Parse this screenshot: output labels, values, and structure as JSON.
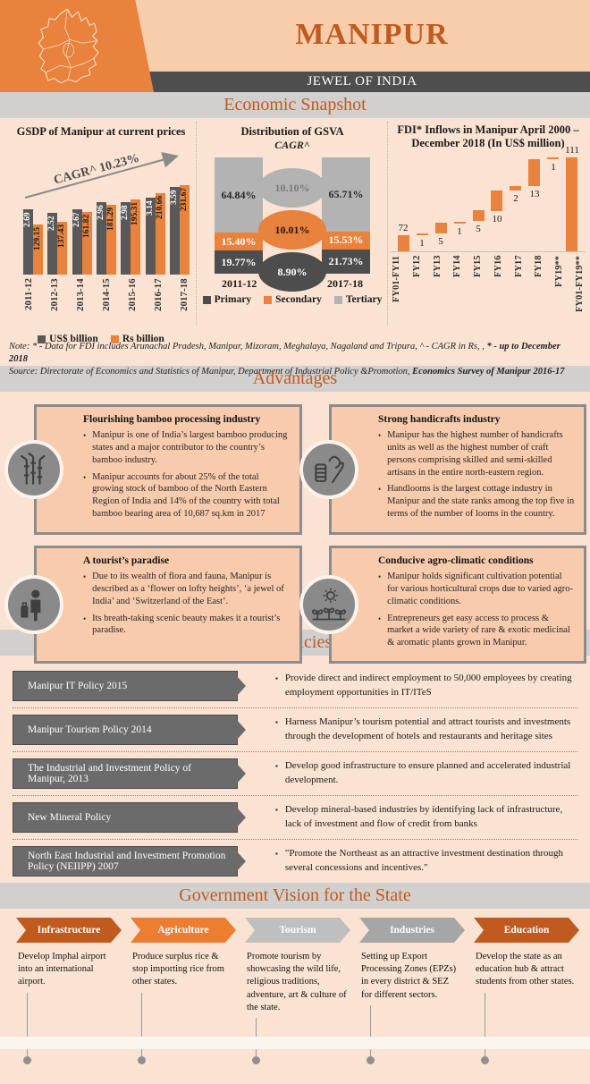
{
  "header": {
    "title": "MANIPUR",
    "tagline": "JEWEL OF INDIA"
  },
  "sections": {
    "economic": "Economic Snapshot",
    "advantages": "Advantages",
    "policies": "Key Government Policies and Objectives",
    "vision": "Government Vision for the State"
  },
  "colors": {
    "orange": "#E8823C",
    "dark_orange": "#C05A1E",
    "mid_orange": "#ED7D31",
    "dark_gray": "#595959",
    "light_gray": "#BFBFBF",
    "mid_gray": "#A6A6A6",
    "peach_bg": "#FAE3D2",
    "card_bg": "#F8CBAD"
  },
  "charts": {
    "gsdp": {
      "title": "GSDP of Manipur at current prices",
      "cagr_label": "CAGR^ 10.23%",
      "years": [
        "2011-12",
        "2012-13",
        "2013-14",
        "2014-15",
        "2015-16",
        "2016-17",
        "2017-18"
      ],
      "usd": [
        2.69,
        2.52,
        2.67,
        2.96,
        2.98,
        3.14,
        3.59
      ],
      "rs": [
        129.15,
        137.43,
        161.82,
        181.29,
        195.31,
        210.66,
        231.67
      ],
      "legend": [
        "US$ billion",
        "Rs billion"
      ]
    },
    "gsva": {
      "title": "Distribution of GSVA",
      "subtitle": "CAGR^",
      "years": [
        "2011-12",
        "2017-18"
      ],
      "primary": [
        19.77,
        21.73
      ],
      "secondary": [
        15.4,
        15.53
      ],
      "tertiary": [
        64.84,
        65.71
      ],
      "cagr_ovals": [
        {
          "label": "10.10%",
          "sector": "tertiary"
        },
        {
          "label": "10.01%",
          "sector": "secondary"
        },
        {
          "label": "8.90%",
          "sector": "primary"
        }
      ],
      "legend": [
        "Primary",
        "Secondary",
        "Tertiary"
      ]
    },
    "fdi": {
      "title": "FDI* Inflows in Manipur April 2000 – December 2018 (In US$ million)",
      "categories": [
        "FY01-FY11",
        "FY12",
        "FY13",
        "FY14",
        "FY15",
        "FY16",
        "FY17",
        "FY18",
        "FY19**",
        "FY01-FY19**"
      ],
      "values": [
        72,
        1,
        5,
        1,
        5,
        10,
        2,
        13,
        1,
        111
      ]
    }
  },
  "chart_data": [
    {
      "type": "bar",
      "title": "GSDP of Manipur at current prices",
      "categories": [
        "2011-12",
        "2012-13",
        "2013-14",
        "2014-15",
        "2015-16",
        "2016-17",
        "2017-18"
      ],
      "series": [
        {
          "name": "US$ billion",
          "values": [
            2.69,
            2.52,
            2.67,
            2.96,
            2.98,
            3.14,
            3.59
          ]
        },
        {
          "name": "Rs billion",
          "values": [
            129.15,
            137.43,
            161.82,
            181.29,
            195.31,
            210.66,
            231.67
          ]
        }
      ],
      "annotations": [
        "CAGR^ 10.23%"
      ],
      "legend_position": "bottom"
    },
    {
      "type": "bar",
      "title": "Distribution of GSVA CAGR^",
      "categories": [
        "2011-12",
        "2017-18"
      ],
      "series": [
        {
          "name": "Primary",
          "values": [
            19.77,
            21.73
          ]
        },
        {
          "name": "Secondary",
          "values": [
            15.4,
            15.53
          ]
        },
        {
          "name": "Tertiary",
          "values": [
            64.84,
            65.71
          ]
        }
      ],
      "annotations": [
        "Tertiary CAGR 10.10%",
        "Secondary CAGR 10.01%",
        "Primary CAGR 8.90%"
      ],
      "legend_position": "bottom"
    },
    {
      "type": "bar",
      "title": "FDI* Inflows in Manipur April 2000 – December 2018 (In US$ million)",
      "categories": [
        "FY01-FY11",
        "FY12",
        "FY13",
        "FY14",
        "FY15",
        "FY16",
        "FY17",
        "FY18",
        "FY19**",
        "FY01-FY19**"
      ],
      "values": [
        72,
        1,
        5,
        1,
        5,
        10,
        2,
        13,
        1,
        111
      ]
    }
  ],
  "note": {
    "line1_prefix": "Note: * - Data for FDI includes Arunachal Pradesh, Manipur, Mizoram, Meghalaya, Nagaland and Tripura, ^ - CAGR in Rs, , ",
    "line1_bold": "* - up to December 2018",
    "line2_prefix": "Source: Directorate of Economics and Statistics of Manipur, Department of Industrial Policy &Promotion, ",
    "line2_bold": "Economics Survey of Manipur 2016-17"
  },
  "advantages": [
    {
      "icon": "bamboo-icon",
      "title": "Flourishing bamboo processing industry",
      "bullets": [
        "Manipur is one of India’s largest bamboo producing states and a major contributor to the country’s bamboo industry.",
        "Manipur accounts for about 25% of the total growing stock of bamboo of the North Eastern Region of India and 14% of the country with total bamboo bearing area of 10,687 sq.km in 2017"
      ]
    },
    {
      "icon": "handicrafts-spool-icon",
      "title": "Strong handicrafts industry",
      "bullets": [
        "Manipur has the highest number of handicrafts units as well as the highest number of craft persons comprising skilled and semi-skilled artisans in the entire north-eastern region.",
        "Handlooms is the largest cottage industry in Manipur and the state ranks among the top five in terms of the number of looms in the country."
      ]
    },
    {
      "icon": "traveler-icon",
      "title": "A tourist’s paradise",
      "bullets": [
        "Due to its wealth of flora and fauna, Manipur is described as a ‘flower on lofty heights’, ‘a jewel of India’ and ‘Switzerland of the East’.",
        "Its breath-taking scenic beauty makes it a tourist’s paradise."
      ]
    },
    {
      "icon": "agro-climate-icon",
      "title": "Conducive agro-climatic conditions",
      "bullets": [
        "Manipur holds significant cultivation potential for various horticultural crops due to varied agro-climatic conditions.",
        "Entrepreneurs get easy access to process & market a wide variety of rare & exotic medicinal & aromatic plants grown in Manipur."
      ]
    }
  ],
  "policies": [
    {
      "policy": "Manipur IT Policy 2015",
      "objective": "Provide direct and indirect employment to 50,000 employees by creating employment opportunities in IT/ITeS"
    },
    {
      "policy": "Manipur Tourism Policy 2014",
      "objective": "Harness Manipur’s tourism potential and attract tourists and investments through the development of hotels and restaurants and heritage sites"
    },
    {
      "policy": "The Industrial and Investment Policy of Manipur, 2013",
      "objective": "Develop good infrastructure to ensure planned and accelerated industrial development."
    },
    {
      "policy": "New Mineral Policy",
      "objective": "Develop mineral-based industries by identifying lack of infrastructure, lack of investment and flow of credit from banks"
    },
    {
      "policy": "North East Industrial and Investment Promotion Policy (NEIIPP) 2007",
      "objective": "\"Promote the Northeast as an attractive investment destination through several concessions and incentives.\""
    }
  ],
  "vision": [
    {
      "label": "Infrastructure",
      "color": "#C05A1E",
      "desc": "Develop Imphal airport into an international airport."
    },
    {
      "label": "Agriculture",
      "color": "#ED7D31",
      "desc": "Produce surplus rice & stop importing rice from other states."
    },
    {
      "label": "Tourism",
      "color": "#BFBFBF",
      "desc": "Promote tourism by showcasing the wild life, religious traditions, adventure, art & culture of the state."
    },
    {
      "label": "Industries",
      "color": "#A6A6A6",
      "desc": "Setting up Export Processing Zones (EPZs) in every district & SEZ for different sectors."
    },
    {
      "label": "Education",
      "color": "#C05A1E",
      "desc": "Develop the state as an education hub & attract students from other states."
    }
  ]
}
